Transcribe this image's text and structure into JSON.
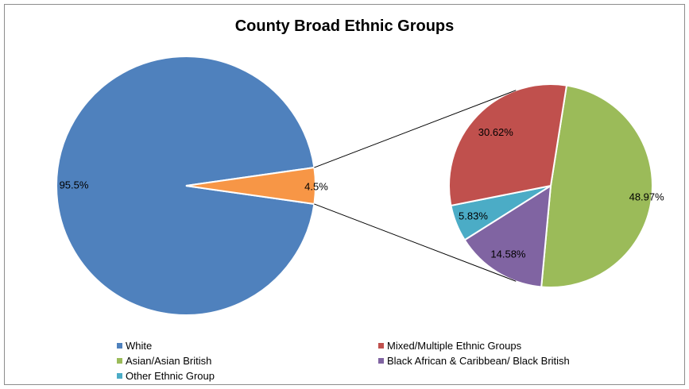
{
  "chart_data": {
    "type": "pie",
    "title": "County Broad Ethnic Groups",
    "main_pie": {
      "slices": [
        {
          "name": "White",
          "value": 95.5,
          "label": "95.5%",
          "color": "#4F81BD"
        },
        {
          "name": "Other (breakout)",
          "value": 4.5,
          "label": "4.5%",
          "color": "#F79646"
        }
      ]
    },
    "breakout_pie": {
      "of_slice": "4.5%",
      "slices": [
        {
          "name": "Asian/Asian British",
          "value": 48.97,
          "label": "48.97%",
          "color": "#9BBB59"
        },
        {
          "name": "Black African & Caribbean/ Black British",
          "value": 14.58,
          "label": "14.58%",
          "color": "#8064A2"
        },
        {
          "name": "Other Ethnic Group",
          "value": 5.83,
          "label": "5.83%",
          "color": "#4BACC6"
        },
        {
          "name": "Mixed/Multiple Ethnic Groups",
          "value": 30.62,
          "label": "30.62%",
          "color": "#C0504D"
        }
      ]
    },
    "legend": [
      {
        "name": "White",
        "color": "#4F81BD"
      },
      {
        "name": "Mixed/Multiple Ethnic Groups",
        "color": "#C0504D"
      },
      {
        "name": "Asian/Asian British",
        "color": "#9BBB59"
      },
      {
        "name": "Black African & Caribbean/ Black British",
        "color": "#8064A2"
      },
      {
        "name": "Other Ethnic Group",
        "color": "#4BACC6"
      }
    ],
    "legend_position": "bottom"
  }
}
